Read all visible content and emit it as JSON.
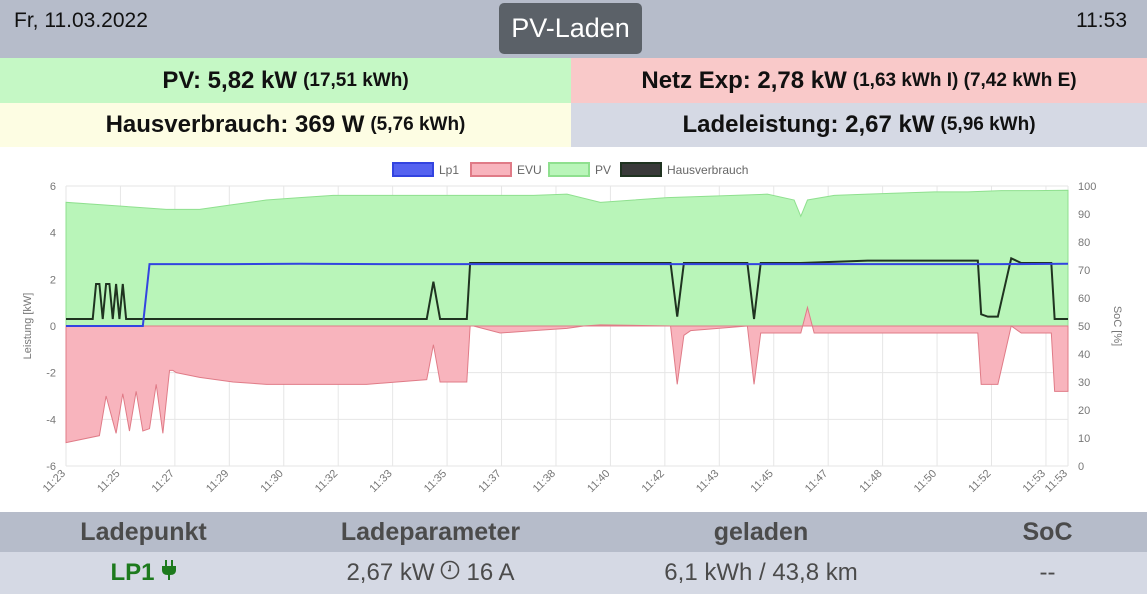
{
  "header": {
    "date": "Fr, 11.03.2022",
    "time": "11:53",
    "mode_button": "PV-Laden"
  },
  "tiles": {
    "pv_label": "PV: 5,82 kW",
    "pv_detail": "(17,51 kWh)",
    "net_label": "Netz Exp: 2,78 kW",
    "net_detail": "(1,63 kWh I) (7,42 kWh E)",
    "house_label": "Hausverbrauch: 369 W",
    "house_detail": "(5,76 kWh)",
    "load_label": "Ladeleistung: 2,67 kW",
    "load_detail": "(5,96 kWh)"
  },
  "colors": {
    "pv_fill": "#b9f5b9",
    "pv_line": "#8fe08f",
    "evu_fill": "#f8b4bd",
    "evu_line": "#e07b87",
    "lp1_line": "#3344e0",
    "house_line": "#1f3320",
    "lp_name": "#1d7a1d"
  },
  "chart_data": {
    "type": "line",
    "legend": [
      "Lp1",
      "EVU",
      "PV",
      "Hausverbrauch"
    ],
    "legend_position": "top",
    "ylabel": "Leistung [kW]",
    "y2label": "SoC [%]",
    "ylim": [
      -6,
      6
    ],
    "yticks": [
      "6",
      "4",
      "2",
      "0",
      "-2",
      "-4",
      "-6"
    ],
    "y2lim": [
      0,
      100
    ],
    "y2ticks": [
      "100",
      "90",
      "80",
      "70",
      "60",
      "50",
      "40",
      "30",
      "20",
      "10",
      "0"
    ],
    "xlim": [
      0,
      30
    ],
    "x_tick_pos": [
      0,
      1.63,
      3.26,
      4.89,
      6.52,
      8.15,
      9.78,
      11.41,
      13.04,
      14.67,
      16.3,
      17.93,
      19.56,
      21.19,
      22.82,
      24.45,
      26.08,
      27.71,
      29.34,
      30
    ],
    "x_tick_labels": [
      "11:23",
      "11:25",
      "11:27",
      "11:29",
      "11:30",
      "11:32",
      "11:33",
      "11:35",
      "11:37",
      "11:38",
      "11:40",
      "11:42",
      "11:43",
      "11:45",
      "11:47",
      "11:48",
      "11:50",
      "11:52",
      "11:53",
      "11:53"
    ],
    "grid": true,
    "series": [
      {
        "name": "PV",
        "x": [
          0,
          1,
          2,
          3,
          4,
          5,
          6,
          7,
          8,
          9,
          10,
          11,
          12,
          13,
          14,
          15,
          16,
          17,
          18,
          19,
          20,
          21,
          21.8,
          22,
          22.2,
          23,
          24,
          25,
          26,
          27,
          28,
          29,
          30
        ],
        "y": [
          5.3,
          5.2,
          5.1,
          5.0,
          5.0,
          5.2,
          5.4,
          5.5,
          5.6,
          5.6,
          5.6,
          5.6,
          5.6,
          5.6,
          5.6,
          5.65,
          5.3,
          5.4,
          5.5,
          5.55,
          5.6,
          5.65,
          5.4,
          4.7,
          5.4,
          5.6,
          5.65,
          5.7,
          5.75,
          5.75,
          5.8,
          5.8,
          5.82
        ]
      },
      {
        "name": "EVU",
        "x": [
          0,
          1,
          1.2,
          1.5,
          1.7,
          1.9,
          2.1,
          2.3,
          2.5,
          2.7,
          2.9,
          3.1,
          3.2,
          3.3,
          4,
          5,
          6,
          7,
          8,
          9,
          10.8,
          11,
          11.2,
          12,
          12.1,
          12.2,
          13,
          14,
          15,
          15.5,
          16,
          18.1,
          18.3,
          18.5,
          18.7,
          20.4,
          20.6,
          20.8,
          21,
          22,
          22.2,
          22.4,
          23,
          24,
          25,
          26,
          27.3,
          27.4,
          27.6,
          27.9,
          28.3,
          28.6,
          29.5,
          29.6,
          30
        ],
        "y": [
          -5.0,
          -4.7,
          -3.0,
          -4.6,
          -2.9,
          -4.5,
          -2.8,
          -4.5,
          -4.4,
          -2.5,
          -4.6,
          -1.9,
          -1.9,
          -2.0,
          -2.2,
          -2.4,
          -2.5,
          -2.5,
          -2.5,
          -2.5,
          -2.3,
          -0.8,
          -2.4,
          -2.4,
          0,
          0,
          -0.3,
          -0.2,
          -0.1,
          0,
          0.05,
          0,
          -2.5,
          -0.4,
          -0.2,
          0,
          -2.5,
          -0.3,
          -0.3,
          -0.3,
          0.8,
          -0.3,
          -0.3,
          -0.3,
          -0.3,
          -0.3,
          -0.3,
          -2.5,
          -2.5,
          -2.5,
          0,
          -0.3,
          -0.3,
          -2.8,
          -2.8
        ]
      },
      {
        "name": "Lp1",
        "x": [
          0,
          2.3,
          2.5,
          3,
          5,
          7,
          10,
          15,
          20,
          25,
          28,
          30
        ],
        "y": [
          0,
          0,
          2.65,
          2.65,
          2.65,
          2.67,
          2.65,
          2.65,
          2.65,
          2.65,
          2.65,
          2.67
        ]
      },
      {
        "name": "Hausverbrauch",
        "x": [
          0,
          0.8,
          0.9,
          1.0,
          1.1,
          1.2,
          1.3,
          1.4,
          1.5,
          1.6,
          1.7,
          1.8,
          1.9,
          2.0,
          2.5,
          5,
          8,
          10.8,
          11,
          11.2,
          12,
          12.1,
          12.2,
          14,
          15,
          16,
          18.1,
          18.3,
          18.5,
          18.7,
          20.4,
          20.6,
          20.8,
          21,
          22,
          24,
          26,
          27.3,
          27.4,
          27.6,
          27.9,
          28.3,
          28.6,
          29.5,
          29.6,
          30
        ],
        "y": [
          0.3,
          0.3,
          1.8,
          1.8,
          0.3,
          1.8,
          1.8,
          0.3,
          1.8,
          0.3,
          1.8,
          0.3,
          0.3,
          0.3,
          0.3,
          0.3,
          0.3,
          0.3,
          1.9,
          0.3,
          0.3,
          2.7,
          2.7,
          2.7,
          2.7,
          2.7,
          2.7,
          0.4,
          2.7,
          2.7,
          2.7,
          0.3,
          2.7,
          2.7,
          2.7,
          2.8,
          2.8,
          2.8,
          0.5,
          0.4,
          0.4,
          2.9,
          2.7,
          2.7,
          0.3,
          0.3
        ]
      }
    ]
  },
  "loadpoints": {
    "headers": [
      "Ladepunkt",
      "Ladeparameter",
      "geladen",
      "SoC"
    ],
    "rows": [
      {
        "name": "LP1",
        "power": "2,67 kW",
        "current": "16 A",
        "charged": "6,1 kWh / 43,8 km",
        "soc": "--"
      }
    ]
  }
}
